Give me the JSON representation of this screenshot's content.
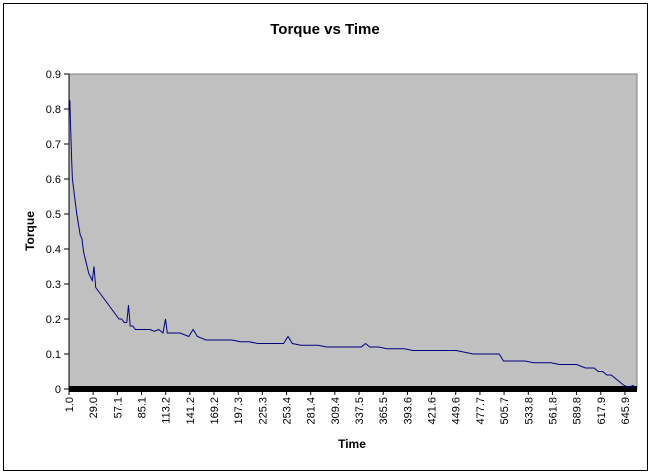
{
  "chart_data": {
    "type": "line",
    "title": "Torque vs Time",
    "xlabel": "Time",
    "ylabel": "Torque",
    "ylim": [
      0,
      0.9
    ],
    "yticks": [
      "0",
      "0.1",
      "0.2",
      "0.3",
      "0.4",
      "0.5",
      "0.6",
      "0.7",
      "0.8",
      "0.9"
    ],
    "xlim": [
      1.0,
      659.9
    ],
    "xtick_values": [
      1.0,
      29.0,
      57.1,
      85.1,
      113.2,
      141.2,
      169.2,
      197.3,
      225.3,
      253.4,
      281.4,
      309.4,
      337.5,
      365.5,
      393.6,
      421.6,
      449.6,
      477.7,
      505.7,
      533.8,
      561.8,
      589.8,
      617.9,
      645.9
    ],
    "xtick_labels": [
      "1.0",
      "29.0",
      "57.1",
      "85.1",
      "113.2",
      "141.2",
      "169.2",
      "197.3",
      "225.3",
      "253.4",
      "281.4",
      "309.4",
      "337.5",
      "365.5",
      "393.6",
      "421.6",
      "449.6",
      "477.7",
      "505.7",
      "533.8",
      "561.8",
      "589.8",
      "617.9",
      "645.9"
    ],
    "grid": false,
    "plot_background": "#c0c0c0",
    "series": [
      {
        "color": "#000080",
        "x": [
          1,
          2,
          3,
          4,
          5,
          6,
          8,
          10,
          12,
          14,
          16,
          18,
          20,
          22,
          24,
          26,
          28,
          30,
          32,
          35,
          38,
          41,
          44,
          47,
          50,
          53,
          56,
          59,
          62,
          65,
          68,
          70,
          72,
          75,
          78,
          82,
          86,
          90,
          95,
          100,
          105,
          110,
          113,
          115,
          120,
          130,
          140,
          145,
          150,
          160,
          170,
          180,
          190,
          200,
          210,
          220,
          230,
          240,
          250,
          255,
          260,
          270,
          280,
          290,
          300,
          310,
          320,
          330,
          340,
          345,
          350,
          360,
          370,
          380,
          390,
          400,
          410,
          420,
          430,
          440,
          450,
          460,
          470,
          480,
          490,
          500,
          505,
          510,
          520,
          530,
          540,
          550,
          560,
          570,
          580,
          590,
          600,
          605,
          610,
          615,
          620,
          625,
          630,
          635,
          640,
          645,
          650,
          655,
          659
        ],
        "values": [
          0.83,
          0.82,
          0.74,
          0.66,
          0.6,
          0.58,
          0.54,
          0.5,
          0.47,
          0.44,
          0.43,
          0.39,
          0.37,
          0.35,
          0.33,
          0.32,
          0.31,
          0.35,
          0.29,
          0.28,
          0.27,
          0.26,
          0.25,
          0.24,
          0.23,
          0.22,
          0.21,
          0.2,
          0.2,
          0.19,
          0.19,
          0.24,
          0.18,
          0.18,
          0.17,
          0.17,
          0.17,
          0.17,
          0.17,
          0.165,
          0.17,
          0.16,
          0.2,
          0.16,
          0.16,
          0.16,
          0.15,
          0.17,
          0.15,
          0.14,
          0.14,
          0.14,
          0.14,
          0.135,
          0.135,
          0.13,
          0.13,
          0.13,
          0.13,
          0.15,
          0.13,
          0.125,
          0.125,
          0.125,
          0.12,
          0.12,
          0.12,
          0.12,
          0.12,
          0.13,
          0.12,
          0.12,
          0.115,
          0.115,
          0.115,
          0.11,
          0.11,
          0.11,
          0.11,
          0.11,
          0.11,
          0.105,
          0.1,
          0.1,
          0.1,
          0.1,
          0.08,
          0.08,
          0.08,
          0.08,
          0.075,
          0.075,
          0.075,
          0.07,
          0.07,
          0.07,
          0.06,
          0.06,
          0.06,
          0.05,
          0.05,
          0.04,
          0.04,
          0.03,
          0.02,
          0.01,
          0.005,
          0.01,
          0.005
        ]
      }
    ]
  }
}
